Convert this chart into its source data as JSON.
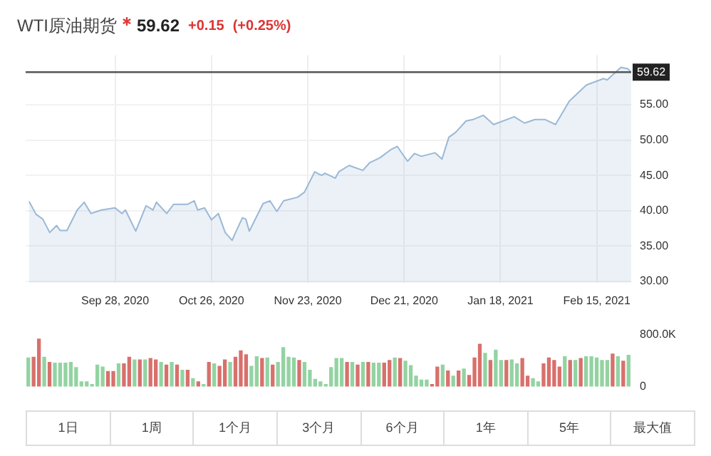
{
  "chart_data": [
    {
      "type": "area",
      "title": "WTI原油期货",
      "annotations": [
        "59.62",
        "+0.15",
        "(+0.25%)"
      ],
      "x": [
        "2020-09-03",
        "2020-09-05",
        "2020-09-07",
        "2020-09-09",
        "2020-09-11",
        "2020-09-12",
        "2020-09-14",
        "2020-09-17",
        "2020-09-19",
        "2020-09-21",
        "2020-09-24",
        "2020-09-28",
        "2020-09-30",
        "2020-10-01",
        "2020-10-04",
        "2020-10-07",
        "2020-10-09",
        "2020-10-10",
        "2020-10-13",
        "2020-10-15",
        "2020-10-19",
        "2020-10-21",
        "2020-10-22",
        "2020-10-24",
        "2020-10-26",
        "2020-10-28",
        "2020-10-30",
        "2020-11-01",
        "2020-11-02",
        "2020-11-04",
        "2020-11-05",
        "2020-11-06",
        "2020-11-10",
        "2020-11-12",
        "2020-11-14",
        "2020-11-16",
        "2020-11-20",
        "2020-11-22",
        "2020-11-25",
        "2020-11-27",
        "2020-11-28",
        "2020-12-01",
        "2020-12-02",
        "2020-12-05",
        "2020-12-09",
        "2020-12-11",
        "2020-12-14",
        "2020-12-17",
        "2020-12-19",
        "2020-12-22",
        "2020-12-24",
        "2020-12-26",
        "2020-12-30",
        "2021-01-01",
        "2021-01-03",
        "2021-01-05",
        "2021-01-08",
        "2021-01-10",
        "2021-01-13",
        "2021-01-16",
        "2021-01-22",
        "2021-01-25",
        "2021-01-28",
        "2021-01-31",
        "2021-02-03",
        "2021-02-07",
        "2021-02-10",
        "2021-02-12",
        "2021-02-17",
        "2021-02-18",
        "2021-02-22",
        "2021-02-24",
        "2021-02-25"
      ],
      "values": [
        41.3,
        39.5,
        38.8,
        36.9,
        37.9,
        37.2,
        37.2,
        40.1,
        41.2,
        39.6,
        40.1,
        40.4,
        39.6,
        40.1,
        37.1,
        40.7,
        40.1,
        41.2,
        39.6,
        40.9,
        40.9,
        41.4,
        40.1,
        40.4,
        38.7,
        39.6,
        36.9,
        35.8,
        36.9,
        39.0,
        38.8,
        37.1,
        41.0,
        41.4,
        39.9,
        41.4,
        41.9,
        42.6,
        45.5,
        45.0,
        45.3,
        44.6,
        45.5,
        46.4,
        45.7,
        46.8,
        47.5,
        48.6,
        49.1,
        47.0,
        48.1,
        47.7,
        48.2,
        47.3,
        50.4,
        51.1,
        52.7,
        52.9,
        53.5,
        52.2,
        53.3,
        52.4,
        52.9,
        52.9,
        52.2,
        55.5,
        56.9,
        57.8,
        58.7,
        58.5,
        60.3,
        60.1,
        59.6
      ],
      "color": "#9ab8d6",
      "xlim": [
        "2020-09-02",
        "2021-02-25"
      ],
      "xticks": [
        {
          "value": "2020-09-28",
          "label": "Sep 28, 2020"
        },
        {
          "value": "2020-10-26",
          "label": "Oct 26, 2020"
        },
        {
          "value": "2020-11-23",
          "label": "Nov 23, 2020"
        },
        {
          "value": "2020-12-21",
          "label": "Dec 21, 2020"
        },
        {
          "value": "2021-01-18",
          "label": "Jan 18, 2021"
        },
        {
          "value": "2021-02-15",
          "label": "Feb 15, 2021"
        }
      ],
      "ylim": [
        29.8,
        62
      ],
      "yticks": [
        {
          "value": 30,
          "label": "30.00"
        },
        {
          "value": 35,
          "label": "35.00"
        },
        {
          "value": 40,
          "label": "40.00"
        },
        {
          "value": 45,
          "label": "45.00"
        },
        {
          "value": 50,
          "label": "50.00"
        },
        {
          "value": 55,
          "label": "55.00"
        }
      ],
      "ref_lines": [
        {
          "axis": "y",
          "value": 59.62,
          "label": "59.62",
          "color": "#555555"
        }
      ],
      "grid": true,
      "legend": false
    },
    {
      "type": "bar",
      "categories": [
        null,
        null,
        null,
        null,
        null,
        null,
        null,
        null,
        null,
        null,
        null,
        null,
        null,
        null,
        null,
        null,
        null,
        null,
        null,
        null,
        null,
        null,
        null,
        null,
        null,
        null,
        null,
        null,
        null,
        null,
        null,
        null,
        null,
        null,
        null,
        null,
        null,
        null,
        null,
        null,
        null,
        null,
        null,
        null,
        null,
        null,
        null,
        null,
        null,
        null,
        null,
        null,
        null,
        null,
        null,
        null,
        null,
        null,
        null,
        null,
        null,
        null,
        null,
        null,
        null,
        null,
        null,
        null,
        null,
        null,
        null,
        null,
        null,
        null,
        null,
        null,
        null,
        null,
        null,
        null,
        null,
        null,
        null,
        null,
        null,
        null,
        null,
        null,
        null,
        null,
        null,
        null,
        null,
        null,
        null,
        null,
        null,
        null,
        null,
        null,
        null,
        null,
        null,
        null,
        null,
        null,
        null,
        null,
        null,
        null,
        null,
        null,
        null,
        null
      ],
      "values": [
        440000,
        450000,
        730000,
        450000,
        370000,
        360000,
        360000,
        360000,
        370000,
        290000,
        70000,
        70000,
        30000,
        330000,
        300000,
        230000,
        230000,
        350000,
        350000,
        450000,
        410000,
        410000,
        410000,
        430000,
        410000,
        370000,
        330000,
        370000,
        330000,
        250000,
        250000,
        120000,
        70000,
        30000,
        370000,
        350000,
        310000,
        410000,
        370000,
        450000,
        550000,
        490000,
        310000,
        460000,
        430000,
        440000,
        330000,
        370000,
        600000,
        450000,
        440000,
        400000,
        370000,
        250000,
        110000,
        70000,
        30000,
        290000,
        430000,
        430000,
        370000,
        370000,
        330000,
        370000,
        370000,
        360000,
        360000,
        360000,
        400000,
        440000,
        430000,
        390000,
        320000,
        160000,
        100000,
        100000,
        30000,
        300000,
        330000,
        240000,
        160000,
        240000,
        270000,
        170000,
        440000,
        650000,
        510000,
        400000,
        560000,
        400000,
        400000,
        410000,
        350000,
        430000,
        160000,
        120000,
        70000,
        350000,
        440000,
        400000,
        300000,
        460000,
        400000,
        400000,
        430000,
        460000,
        460000,
        440000,
        400000,
        400000,
        500000,
        460000,
        390000,
        480000
      ],
      "colors": [
        "#93d3a2",
        "#d8706c",
        "#d8706c",
        "#93d3a2",
        "#d8706c",
        "#93d3a2",
        "#93d3a2",
        "#93d3a2",
        "#93d3a2",
        "#93d3a2",
        "#93d3a2",
        "#93d3a2",
        "#93d3a2",
        "#93d3a2",
        "#93d3a2",
        "#d8706c",
        "#d8706c",
        "#93d3a2",
        "#d8706c",
        "#d8706c",
        "#93d3a2",
        "#d8706c",
        "#93d3a2",
        "#d8706c",
        "#d8706c",
        "#93d3a2",
        "#d8706c",
        "#93d3a2",
        "#d8706c",
        "#93d3a2",
        "#d8706c",
        "#93d3a2",
        "#d8706c",
        "#93d3a2",
        "#d8706c",
        "#93d3a2",
        "#d8706c",
        "#d8706c",
        "#93d3a2",
        "#d8706c",
        "#d8706c",
        "#d8706c",
        "#93d3a2",
        "#93d3a2",
        "#d8706c",
        "#93d3a2",
        "#d8706c",
        "#93d3a2",
        "#93d3a2",
        "#93d3a2",
        "#93d3a2",
        "#d8706c",
        "#93d3a2",
        "#93d3a2",
        "#93d3a2",
        "#93d3a2",
        "#93d3a2",
        "#93d3a2",
        "#93d3a2",
        "#93d3a2",
        "#d8706c",
        "#93d3a2",
        "#d8706c",
        "#93d3a2",
        "#d8706c",
        "#93d3a2",
        "#93d3a2",
        "#d8706c",
        "#d8706c",
        "#93d3a2",
        "#d8706c",
        "#93d3a2",
        "#93d3a2",
        "#93d3a2",
        "#93d3a2",
        "#93d3a2",
        "#d8706c",
        "#d8706c",
        "#93d3a2",
        "#d8706c",
        "#93d3a2",
        "#d8706c",
        "#93d3a2",
        "#d8706c",
        "#d8706c",
        "#d8706c",
        "#93d3a2",
        "#d8706c",
        "#93d3a2",
        "#93d3a2",
        "#d8706c",
        "#93d3a2",
        "#93d3a2",
        "#d8706c",
        "#d8706c",
        "#93d3a2",
        "#93d3a2",
        "#d8706c",
        "#d8706c",
        "#d8706c",
        "#d8706c",
        "#93d3a2",
        "#d8706c",
        "#93d3a2",
        "#d8706c",
        "#93d3a2",
        "#93d3a2",
        "#93d3a2",
        "#93d3a2",
        "#93d3a2",
        "#d8706c",
        "#93d3a2",
        "#d8706c",
        "#93d3a2"
      ],
      "ylim": [
        0,
        800000
      ],
      "yticks": [
        {
          "value": 0,
          "label": "0"
        },
        {
          "value": 800000,
          "label": "800.0K"
        }
      ],
      "grid": false,
      "legend": false
    },
    {
      "type": "other",
      "annotations": [
        "1日",
        "1周",
        "1个月",
        "3个月",
        "6个月",
        "1年",
        "5年",
        "最大值"
      ]
    }
  ]
}
